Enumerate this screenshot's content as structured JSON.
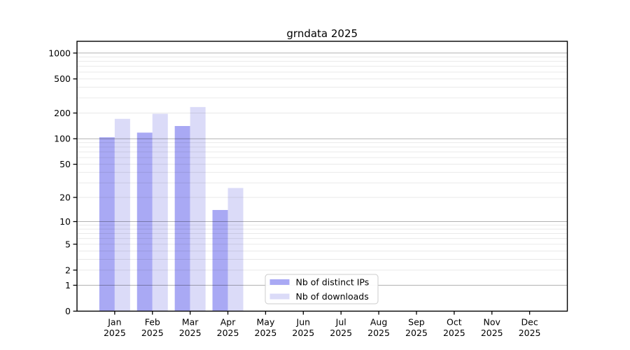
{
  "figure": {
    "background": "#ffffff"
  },
  "chart_data": {
    "type": "bar",
    "title": "grndata 2025",
    "categories": [
      "Jan",
      "Feb",
      "Mar",
      "Apr",
      "May",
      "Jun",
      "Jul",
      "Aug",
      "Sep",
      "Oct",
      "Nov",
      "Dec"
    ],
    "x_year_label": "2025",
    "series": [
      {
        "name": "Nb of distinct IPs",
        "key": "distinct-ips",
        "color": "#a9a9f4",
        "values": [
          104,
          118,
          141,
          14,
          0,
          0,
          0,
          0,
          0,
          0,
          0,
          0
        ]
      },
      {
        "name": "Nb of downloads",
        "key": "downloads",
        "color": "#dbdbf8",
        "values": [
          171,
          196,
          235,
          26,
          0,
          0,
          0,
          0,
          0,
          0,
          0,
          0
        ]
      }
    ],
    "yscale": "log1p",
    "ylim": [
      0,
      1370
    ],
    "yticks": [
      0,
      1,
      2,
      5,
      10,
      20,
      50,
      100,
      200,
      500,
      1000
    ],
    "gridlines_major": [
      1,
      10,
      100,
      1000
    ],
    "gridlines_minor": [
      2,
      3,
      4,
      5,
      6,
      7,
      8,
      9,
      20,
      30,
      40,
      50,
      60,
      70,
      80,
      90,
      200,
      300,
      400,
      500,
      600,
      700,
      800,
      900
    ],
    "grid": true,
    "legend_position": "lower center"
  },
  "style": {
    "grid_major_color": "rgba(0,0,0,0.30)",
    "grid_minor_color": "rgba(0,0,0,0.085)",
    "spine_color": "#000000",
    "tick_color": "#000000",
    "legend_border": "#cccccc",
    "legend_bg": "rgba(255,255,255,0.93)"
  }
}
